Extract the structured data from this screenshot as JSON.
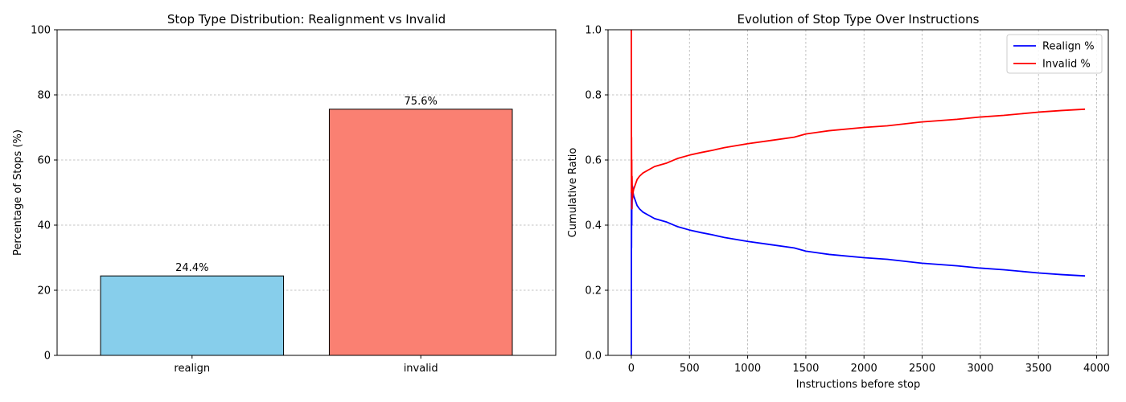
{
  "chart_data": [
    {
      "type": "bar",
      "title": "Stop Type Distribution: Realignment vs Invalid",
      "xlabel": "",
      "ylabel": "Percentage of Stops (%)",
      "categories": [
        "realign",
        "invalid"
      ],
      "values": [
        24.4,
        75.6
      ],
      "value_labels": [
        "24.4%",
        "75.6%"
      ],
      "bar_colors": [
        "#87ceeb",
        "#fa8072"
      ],
      "edge_color": "#000000",
      "ylim": [
        0,
        100
      ],
      "yticks": [
        0,
        20,
        40,
        60,
        80,
        100
      ],
      "grid": "y",
      "legend": "none"
    },
    {
      "type": "line",
      "title": "Evolution of Stop Type Over Instructions",
      "xlabel": "Instructions before stop",
      "ylabel": "Cumulative Ratio",
      "xlim": [
        -200,
        4100
      ],
      "ylim": [
        0,
        1
      ],
      "xticks": [
        0,
        500,
        1000,
        1500,
        2000,
        2500,
        3000,
        3500,
        4000
      ],
      "yticks": [
        0.0,
        0.2,
        0.4,
        0.6,
        0.8,
        1.0
      ],
      "ytick_labels": [
        "0.0",
        "0.2",
        "0.4",
        "0.6",
        "0.8",
        "1.0"
      ],
      "grid": "both",
      "legend": "top-right",
      "series": [
        {
          "name": "Realign %",
          "color": "#0000ff",
          "x": [
            0,
            1,
            2,
            3,
            4,
            5,
            6,
            8,
            10,
            15,
            20,
            30,
            40,
            50,
            70,
            100,
            150,
            200,
            300,
            400,
            500,
            600,
            700,
            800,
            1000,
            1200,
            1400,
            1500,
            1700,
            2000,
            2200,
            2500,
            2800,
            3000,
            3200,
            3500,
            3700,
            3900
          ],
          "y": [
            0.0,
            0.5,
            0.33,
            0.5,
            0.4,
            0.55,
            0.45,
            0.5,
            0.52,
            0.5,
            0.49,
            0.48,
            0.47,
            0.46,
            0.45,
            0.44,
            0.43,
            0.42,
            0.41,
            0.395,
            0.385,
            0.377,
            0.37,
            0.362,
            0.35,
            0.34,
            0.33,
            0.32,
            0.31,
            0.3,
            0.295,
            0.283,
            0.275,
            0.268,
            0.263,
            0.253,
            0.248,
            0.244
          ]
        },
        {
          "name": "Invalid %",
          "color": "#ff0000",
          "x": [
            0,
            1,
            2,
            3,
            4,
            5,
            6,
            8,
            10,
            15,
            20,
            30,
            40,
            50,
            70,
            100,
            150,
            200,
            300,
            400,
            500,
            600,
            700,
            800,
            1000,
            1200,
            1400,
            1500,
            1700,
            2000,
            2200,
            2500,
            2800,
            3000,
            3200,
            3500,
            3700,
            3900
          ],
          "y": [
            1.0,
            0.5,
            0.67,
            0.5,
            0.6,
            0.45,
            0.55,
            0.5,
            0.48,
            0.5,
            0.51,
            0.52,
            0.53,
            0.54,
            0.55,
            0.56,
            0.57,
            0.58,
            0.59,
            0.605,
            0.615,
            0.623,
            0.63,
            0.638,
            0.65,
            0.66,
            0.67,
            0.68,
            0.69,
            0.7,
            0.705,
            0.717,
            0.725,
            0.732,
            0.737,
            0.747,
            0.752,
            0.756
          ]
        }
      ]
    }
  ]
}
